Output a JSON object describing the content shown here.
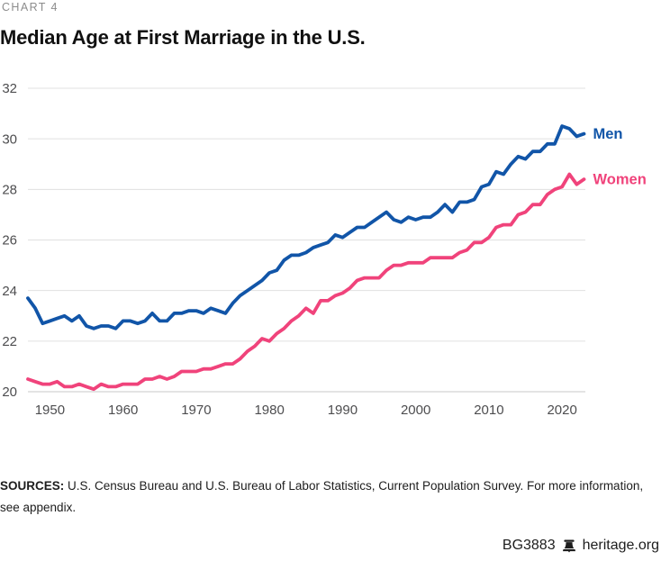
{
  "kicker": "CHART 4",
  "title": "Median Age at First Marriage in the U.S.",
  "chart_data": {
    "type": "line",
    "title": "Median Age at First Marriage in the U.S.",
    "xlabel": "",
    "ylabel": "",
    "xlim": [
      1947,
      2023
    ],
    "ylim": [
      20,
      32
    ],
    "xticks": [
      1950,
      1960,
      1970,
      1980,
      1990,
      2000,
      2010,
      2020
    ],
    "yticks": [
      20,
      22,
      24,
      26,
      28,
      30,
      32
    ],
    "grid": "horizontal",
    "legend_position": "line-end-labels",
    "x": [
      1947,
      1948,
      1949,
      1950,
      1951,
      1952,
      1953,
      1954,
      1955,
      1956,
      1957,
      1958,
      1959,
      1960,
      1961,
      1962,
      1963,
      1964,
      1965,
      1966,
      1967,
      1968,
      1969,
      1970,
      1971,
      1972,
      1973,
      1974,
      1975,
      1976,
      1977,
      1978,
      1979,
      1980,
      1981,
      1982,
      1983,
      1984,
      1985,
      1986,
      1987,
      1988,
      1989,
      1990,
      1991,
      1992,
      1993,
      1994,
      1995,
      1996,
      1997,
      1998,
      1999,
      2000,
      2001,
      2002,
      2003,
      2004,
      2005,
      2006,
      2007,
      2008,
      2009,
      2010,
      2011,
      2012,
      2013,
      2014,
      2015,
      2016,
      2017,
      2018,
      2019,
      2020,
      2021,
      2022,
      2023
    ],
    "series": [
      {
        "name": "Men",
        "color": "#1155a8",
        "values": [
          23.7,
          23.3,
          22.7,
          22.8,
          22.9,
          23.0,
          22.8,
          23.0,
          22.6,
          22.5,
          22.6,
          22.6,
          22.5,
          22.8,
          22.8,
          22.7,
          22.8,
          23.1,
          22.8,
          22.8,
          23.1,
          23.1,
          23.2,
          23.2,
          23.1,
          23.3,
          23.2,
          23.1,
          23.5,
          23.8,
          24.0,
          24.2,
          24.4,
          24.7,
          24.8,
          25.2,
          25.4,
          25.4,
          25.5,
          25.7,
          25.8,
          25.9,
          26.2,
          26.1,
          26.3,
          26.5,
          26.5,
          26.7,
          26.9,
          27.1,
          26.8,
          26.7,
          26.9,
          26.8,
          26.9,
          26.9,
          27.1,
          27.4,
          27.1,
          27.5,
          27.5,
          27.6,
          28.1,
          28.2,
          28.7,
          28.6,
          29.0,
          29.3,
          29.2,
          29.5,
          29.5,
          29.8,
          29.8,
          30.5,
          30.4,
          30.1,
          30.2
        ]
      },
      {
        "name": "Women",
        "color": "#f0437b",
        "values": [
          20.5,
          20.4,
          20.3,
          20.3,
          20.4,
          20.2,
          20.2,
          20.3,
          20.2,
          20.1,
          20.3,
          20.2,
          20.2,
          20.3,
          20.3,
          20.3,
          20.5,
          20.5,
          20.6,
          20.5,
          20.6,
          20.8,
          20.8,
          20.8,
          20.9,
          20.9,
          21.0,
          21.1,
          21.1,
          21.3,
          21.6,
          21.8,
          22.1,
          22.0,
          22.3,
          22.5,
          22.8,
          23.0,
          23.3,
          23.1,
          23.6,
          23.6,
          23.8,
          23.9,
          24.1,
          24.4,
          24.5,
          24.5,
          24.5,
          24.8,
          25.0,
          25.0,
          25.1,
          25.1,
          25.1,
          25.3,
          25.3,
          25.3,
          25.3,
          25.5,
          25.6,
          25.9,
          25.9,
          26.1,
          26.5,
          26.6,
          26.6,
          27.0,
          27.1,
          27.4,
          27.4,
          27.8,
          28.0,
          28.1,
          28.6,
          28.2,
          28.4
        ]
      }
    ]
  },
  "sources": {
    "label": "SOURCES:",
    "line1": "U.S. Census Bureau and U.S. Bureau of Labor Statistics, Current Population Survey. For more information,",
    "line2": "see appendix."
  },
  "footer": {
    "report_id": "BG3883",
    "site": "heritage.org"
  },
  "colors": {
    "grid": "#e0e0e0",
    "grid_bottom": "#c9c9c9",
    "axis_text": "#4d4d4f",
    "kicker_text": "#8c8c8c",
    "title_text": "#111111",
    "footer_text": "#1d1d1d"
  }
}
